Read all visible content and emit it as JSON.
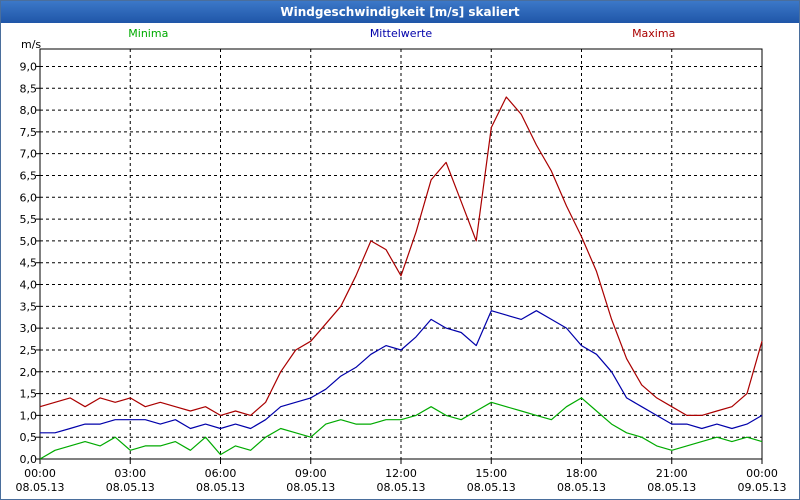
{
  "window": {
    "title": "Windgeschwindigkeit [m/s] skaliert"
  },
  "chart_data": {
    "type": "line",
    "unit_label": "m/s",
    "ylim": [
      0,
      9.4
    ],
    "yticks": [
      "0,0",
      "0,5",
      "1,0",
      "1,5",
      "2,0",
      "2,5",
      "3,0",
      "3,5",
      "4,0",
      "4,5",
      "5,0",
      "5,5",
      "6,0",
      "6,5",
      "7,0",
      "7,5",
      "8,0",
      "8,5",
      "9,0"
    ],
    "ytick_values": [
      0,
      0.5,
      1,
      1.5,
      2,
      2.5,
      3,
      3.5,
      4,
      4.5,
      5,
      5.5,
      6,
      6.5,
      7,
      7.5,
      8,
      8.5,
      9
    ],
    "xlim": [
      0,
      24
    ],
    "xticks": [
      {
        "x": 0,
        "time": "00:00",
        "date": "08.05.13"
      },
      {
        "x": 3,
        "time": "03:00",
        "date": "08.05.13"
      },
      {
        "x": 6,
        "time": "06:00",
        "date": "08.05.13"
      },
      {
        "x": 9,
        "time": "09:00",
        "date": "08.05.13"
      },
      {
        "x": 12,
        "time": "12:00",
        "date": "08.05.13"
      },
      {
        "x": 15,
        "time": "15:00",
        "date": "08.05.13"
      },
      {
        "x": 18,
        "time": "18:00",
        "date": "08.05.13"
      },
      {
        "x": 21,
        "time": "21:00",
        "date": "08.05.13"
      },
      {
        "x": 24,
        "time": "00:00",
        "date": "09.05.13"
      }
    ],
    "grid": true,
    "legend_position": "top",
    "series": [
      {
        "name": "Minima",
        "color": "#00aa00",
        "points": [
          [
            0,
            0
          ],
          [
            0.5,
            0.2
          ],
          [
            1,
            0.3
          ],
          [
            1.5,
            0.4
          ],
          [
            2,
            0.3
          ],
          [
            2.5,
            0.5
          ],
          [
            3,
            0.2
          ],
          [
            3.5,
            0.3
          ],
          [
            4,
            0.3
          ],
          [
            4.5,
            0.4
          ],
          [
            5,
            0.2
          ],
          [
            5.5,
            0.5
          ],
          [
            6,
            0.1
          ],
          [
            6.5,
            0.3
          ],
          [
            7,
            0.2
          ],
          [
            7.5,
            0.5
          ],
          [
            8,
            0.7
          ],
          [
            8.5,
            0.6
          ],
          [
            9,
            0.5
          ],
          [
            9.5,
            0.8
          ],
          [
            10,
            0.9
          ],
          [
            10.5,
            0.8
          ],
          [
            11,
            0.8
          ],
          [
            11.5,
            0.9
          ],
          [
            12,
            0.9
          ],
          [
            12.5,
            1.0
          ],
          [
            13,
            1.2
          ],
          [
            13.5,
            1.0
          ],
          [
            14,
            0.9
          ],
          [
            14.5,
            1.1
          ],
          [
            15,
            1.3
          ],
          [
            15.5,
            1.2
          ],
          [
            16,
            1.1
          ],
          [
            16.5,
            1.0
          ],
          [
            17,
            0.9
          ],
          [
            17.5,
            1.2
          ],
          [
            18,
            1.4
          ],
          [
            18.5,
            1.1
          ],
          [
            19,
            0.8
          ],
          [
            19.5,
            0.6
          ],
          [
            20,
            0.5
          ],
          [
            20.5,
            0.3
          ],
          [
            21,
            0.2
          ],
          [
            21.5,
            0.3
          ],
          [
            22,
            0.4
          ],
          [
            22.5,
            0.5
          ],
          [
            23,
            0.4
          ],
          [
            23.5,
            0.5
          ],
          [
            24,
            0.4
          ]
        ]
      },
      {
        "name": "Mittelwerte",
        "color": "#0000aa",
        "points": [
          [
            0,
            0.6
          ],
          [
            0.5,
            0.6
          ],
          [
            1,
            0.7
          ],
          [
            1.5,
            0.8
          ],
          [
            2,
            0.8
          ],
          [
            2.5,
            0.9
          ],
          [
            3,
            0.9
          ],
          [
            3.5,
            0.9
          ],
          [
            4,
            0.8
          ],
          [
            4.5,
            0.9
          ],
          [
            5,
            0.7
          ],
          [
            5.5,
            0.8
          ],
          [
            6,
            0.7
          ],
          [
            6.5,
            0.8
          ],
          [
            7,
            0.7
          ],
          [
            7.5,
            0.9
          ],
          [
            8,
            1.2
          ],
          [
            8.5,
            1.3
          ],
          [
            9,
            1.4
          ],
          [
            9.5,
            1.6
          ],
          [
            10,
            1.9
          ],
          [
            10.5,
            2.1
          ],
          [
            11,
            2.4
          ],
          [
            11.5,
            2.6
          ],
          [
            12,
            2.5
          ],
          [
            12.5,
            2.8
          ],
          [
            13,
            3.2
          ],
          [
            13.5,
            3.0
          ],
          [
            14,
            2.9
          ],
          [
            14.5,
            2.6
          ],
          [
            15,
            3.4
          ],
          [
            15.5,
            3.3
          ],
          [
            16,
            3.2
          ],
          [
            16.5,
            3.4
          ],
          [
            17,
            3.2
          ],
          [
            17.5,
            3.0
          ],
          [
            18,
            2.6
          ],
          [
            18.5,
            2.4
          ],
          [
            19,
            2.0
          ],
          [
            19.5,
            1.4
          ],
          [
            20,
            1.2
          ],
          [
            20.5,
            1.0
          ],
          [
            21,
            0.8
          ],
          [
            21.5,
            0.8
          ],
          [
            22,
            0.7
          ],
          [
            22.5,
            0.8
          ],
          [
            23,
            0.7
          ],
          [
            23.5,
            0.8
          ],
          [
            24,
            1.0
          ]
        ]
      },
      {
        "name": "Maxima",
        "color": "#aa0000",
        "points": [
          [
            0,
            1.2
          ],
          [
            0.5,
            1.3
          ],
          [
            1,
            1.4
          ],
          [
            1.5,
            1.2
          ],
          [
            2,
            1.4
          ],
          [
            2.5,
            1.3
          ],
          [
            3,
            1.4
          ],
          [
            3.5,
            1.2
          ],
          [
            4,
            1.3
          ],
          [
            4.5,
            1.2
          ],
          [
            5,
            1.1
          ],
          [
            5.5,
            1.2
          ],
          [
            6,
            1.0
          ],
          [
            6.5,
            1.1
          ],
          [
            7,
            1.0
          ],
          [
            7.5,
            1.3
          ],
          [
            8,
            2.0
          ],
          [
            8.5,
            2.5
          ],
          [
            9,
            2.7
          ],
          [
            9.5,
            3.1
          ],
          [
            10,
            3.5
          ],
          [
            10.5,
            4.2
          ],
          [
            11,
            5.0
          ],
          [
            11.5,
            4.8
          ],
          [
            12,
            4.2
          ],
          [
            12.5,
            5.2
          ],
          [
            13,
            6.4
          ],
          [
            13.5,
            6.8
          ],
          [
            14,
            5.9
          ],
          [
            14.5,
            5.0
          ],
          [
            15,
            7.6
          ],
          [
            15.5,
            8.3
          ],
          [
            16,
            7.9
          ],
          [
            16.5,
            7.2
          ],
          [
            17,
            6.6
          ],
          [
            17.5,
            5.8
          ],
          [
            18,
            5.1
          ],
          [
            18.5,
            4.3
          ],
          [
            19,
            3.2
          ],
          [
            19.5,
            2.3
          ],
          [
            20,
            1.7
          ],
          [
            20.5,
            1.4
          ],
          [
            21,
            1.2
          ],
          [
            21.5,
            1.0
          ],
          [
            22,
            1.0
          ],
          [
            22.5,
            1.1
          ],
          [
            23,
            1.2
          ],
          [
            23.5,
            1.5
          ],
          [
            24,
            2.7
          ]
        ]
      }
    ]
  }
}
